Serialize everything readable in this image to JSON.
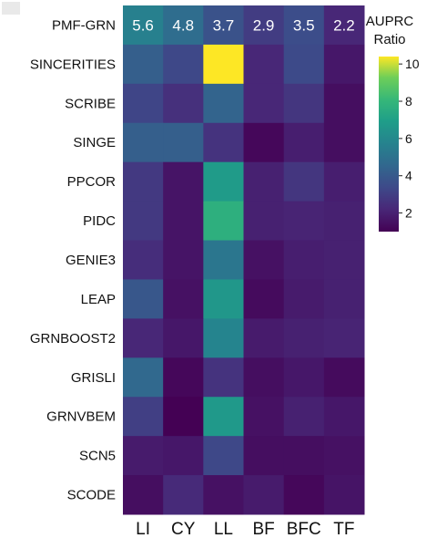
{
  "chart_data": {
    "type": "heatmap",
    "rows": [
      "PMF-GRN",
      "SINCERITIES",
      "SCRIBE",
      "SINGE",
      "PPCOR",
      "PIDC",
      "GENIE3",
      "LEAP",
      "GRNBOOST2",
      "GRISLI",
      "GRNVBEM",
      "SCN5",
      "SCODE"
    ],
    "columns": [
      "LI",
      "CY",
      "LL",
      "BF",
      "BFC",
      "TF"
    ],
    "values": [
      [
        5.6,
        4.8,
        3.7,
        2.9,
        3.5,
        2.2
      ],
      [
        4.2,
        3.3,
        10.4,
        2.2,
        3.4,
        1.7
      ],
      [
        3.2,
        2.5,
        4.4,
        2.2,
        2.7,
        1.4
      ],
      [
        4.2,
        4.2,
        2.6,
        1.2,
        1.9,
        1.4
      ],
      [
        2.8,
        1.6,
        6.8,
        2.0,
        2.7,
        1.9
      ],
      [
        2.8,
        1.6,
        7.7,
        2.0,
        2.1,
        2.0
      ],
      [
        2.4,
        1.6,
        5.2,
        1.5,
        1.9,
        2.0
      ],
      [
        3.9,
        1.5,
        6.6,
        1.3,
        1.8,
        2.0
      ],
      [
        2.2,
        1.7,
        5.8,
        1.8,
        2.0,
        2.1
      ],
      [
        4.6,
        1.2,
        2.6,
        1.4,
        1.7,
        1.3
      ],
      [
        3.0,
        1.0,
        6.7,
        1.5,
        2.0,
        1.7
      ],
      [
        1.8,
        1.7,
        3.3,
        1.4,
        1.4,
        1.5
      ],
      [
        1.4,
        2.3,
        1.5,
        1.8,
        1.2,
        1.6
      ]
    ],
    "top_row_labels": [
      "5.6",
      "4.8",
      "3.7",
      "2.9",
      "3.5",
      "2.2"
    ],
    "colorbar": {
      "title_line1": "AUPRC",
      "title_line2": "Ratio",
      "min": 1.0,
      "max": 10.4,
      "ticks": [
        2,
        4,
        6,
        8,
        10
      ],
      "colormap": "viridis"
    }
  }
}
